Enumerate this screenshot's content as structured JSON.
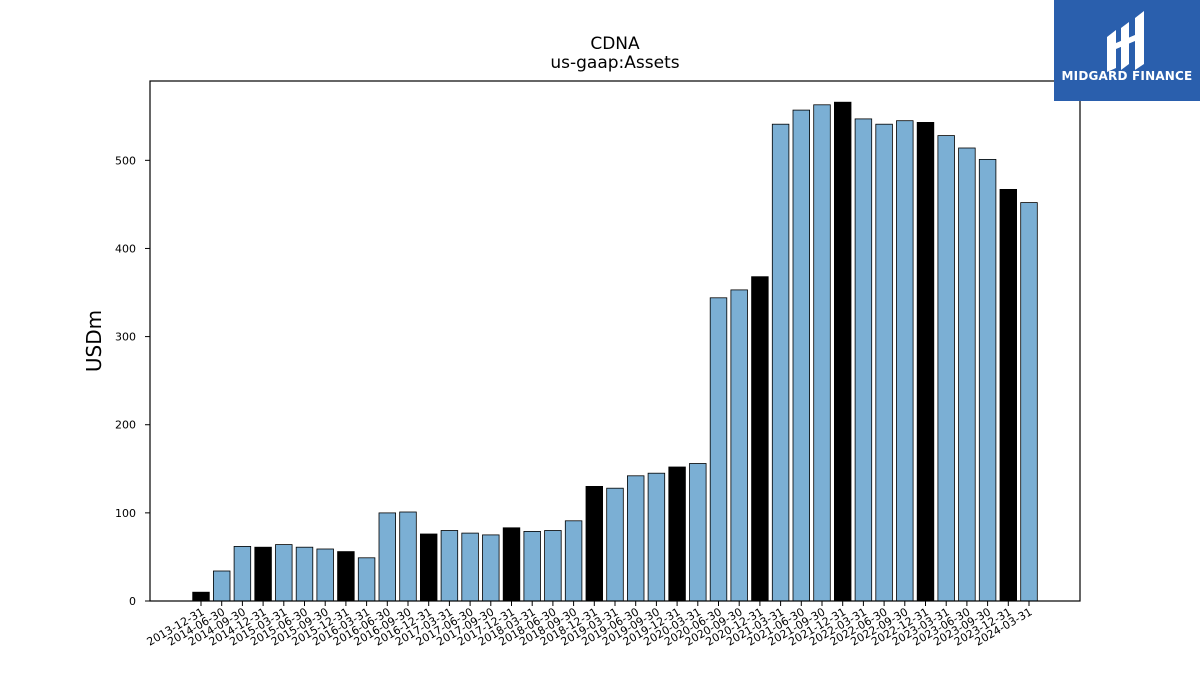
{
  "chart_data": {
    "type": "bar",
    "title": "CDNA",
    "subtitle": "us-gaap:Assets",
    "xlabel": "",
    "ylabel": "USDm",
    "ylim": [
      0,
      590
    ],
    "yticks": [
      0,
      100,
      200,
      300,
      400,
      500
    ],
    "grid": false,
    "categories": [
      "2013-12-31",
      "2014-06-30",
      "2014-09-30",
      "2014-12-31",
      "2015-03-31",
      "2015-06-30",
      "2015-09-30",
      "2015-12-31",
      "2016-03-31",
      "2016-06-30",
      "2016-09-30",
      "2016-12-31",
      "2017-03-31",
      "2017-06-30",
      "2017-09-30",
      "2017-12-31",
      "2018-03-31",
      "2018-06-30",
      "2018-09-30",
      "2018-12-31",
      "2019-03-31",
      "2019-06-30",
      "2019-09-30",
      "2019-12-31",
      "2020-03-31",
      "2020-06-30",
      "2020-09-30",
      "2020-12-31",
      "2021-03-31",
      "2021-06-30",
      "2021-09-30",
      "2021-12-31",
      "2022-03-31",
      "2022-06-30",
      "2022-09-30",
      "2022-12-31",
      "2023-03-31",
      "2023-06-30",
      "2023-09-30",
      "2023-12-31",
      "2024-03-31"
    ],
    "values": [
      10,
      34,
      62,
      61,
      64,
      61,
      59,
      56,
      49,
      100,
      101,
      76,
      80,
      77,
      75,
      83,
      79,
      80,
      91,
      130,
      128,
      142,
      145,
      152,
      156,
      344,
      353,
      368,
      541,
      557,
      563,
      566,
      547,
      541,
      545,
      543,
      528,
      514,
      501,
      467,
      452
    ],
    "fiscal_year_end": [
      true,
      false,
      false,
      true,
      false,
      false,
      false,
      true,
      false,
      false,
      false,
      true,
      false,
      false,
      false,
      true,
      false,
      false,
      false,
      true,
      false,
      false,
      false,
      true,
      false,
      false,
      false,
      true,
      false,
      false,
      false,
      true,
      false,
      false,
      false,
      true,
      false,
      false,
      false,
      true,
      false
    ],
    "colors": {
      "quarter": "#7bafd4",
      "year_end": "#000000",
      "edge": "#000000"
    }
  },
  "logo": {
    "text": "MIDGARD FINANCE",
    "background": "#2a5fad"
  }
}
